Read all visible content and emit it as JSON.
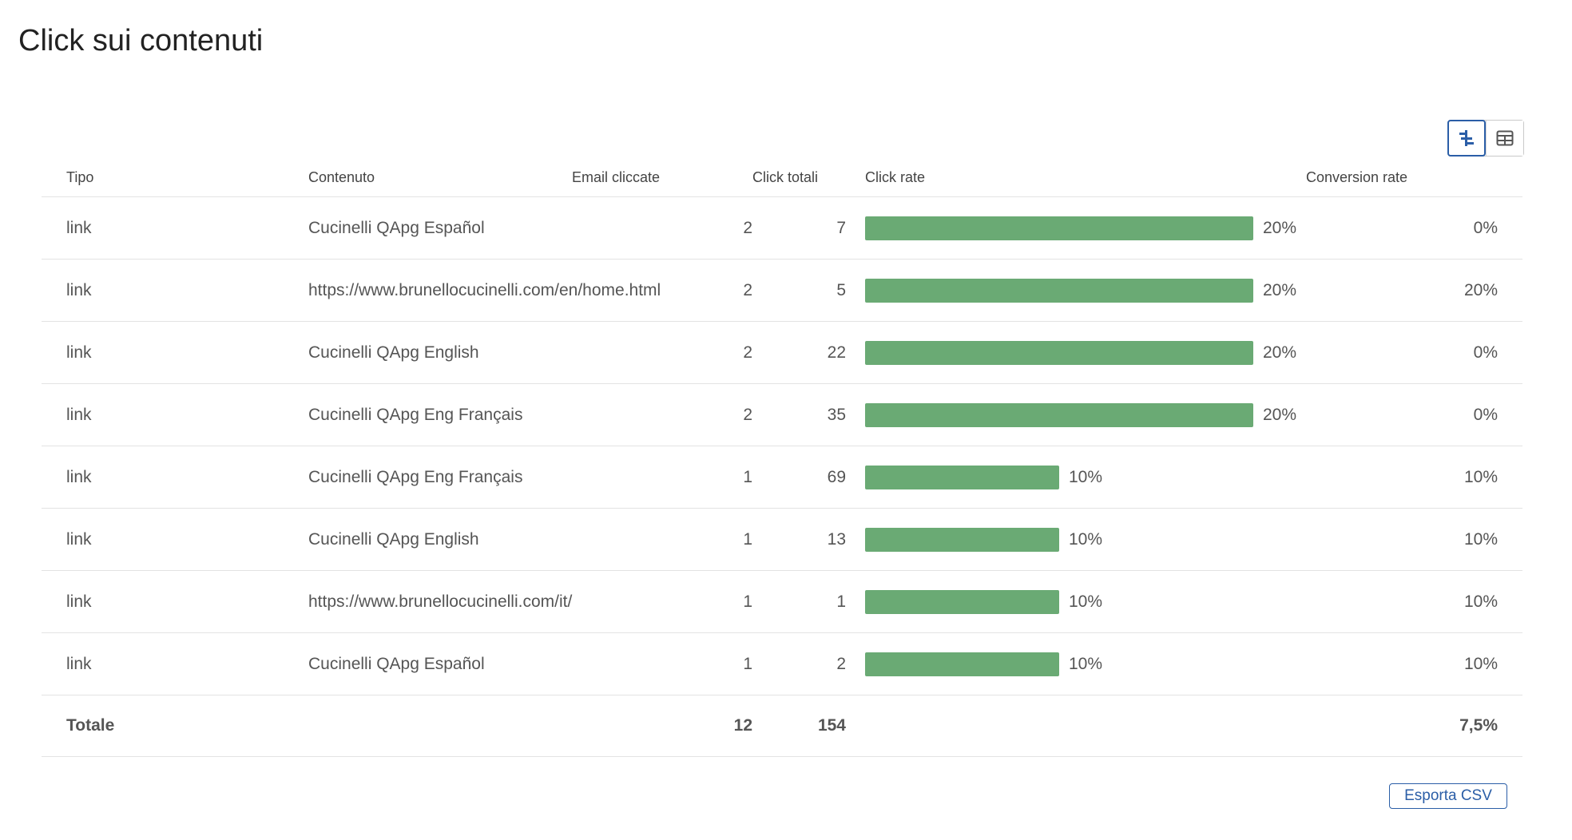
{
  "page": {
    "title": "Click sui contenuti"
  },
  "view_toggle": {
    "chart_icon": "bar-chart-view-icon",
    "table_icon": "table-view-icon",
    "active": "chart"
  },
  "table": {
    "headers": {
      "tipo": "Tipo",
      "contenuto": "Contenuto",
      "email": "Email cliccate",
      "click": "Click totali",
      "rate": "Click rate",
      "conversion": "Conversion rate"
    },
    "rows": [
      {
        "tipo": "link",
        "contenuto": "Cucinelli QApg Español",
        "email": "2",
        "click": "7",
        "rate": 0.2,
        "rate_label": "20%",
        "conversion": "0%"
      },
      {
        "tipo": "link",
        "contenuto": "https://www.brunellocucinelli.com/en/home.html",
        "email": "2",
        "click": "5",
        "rate": 0.2,
        "rate_label": "20%",
        "conversion": "20%"
      },
      {
        "tipo": "link",
        "contenuto": "Cucinelli QApg English",
        "email": "2",
        "click": "22",
        "rate": 0.2,
        "rate_label": "20%",
        "conversion": "0%"
      },
      {
        "tipo": "link",
        "contenuto": "Cucinelli QApg Eng Français",
        "email": "2",
        "click": "35",
        "rate": 0.2,
        "rate_label": "20%",
        "conversion": "0%"
      },
      {
        "tipo": "link",
        "contenuto": "Cucinelli QApg Eng Français",
        "email": "1",
        "click": "69",
        "rate": 0.1,
        "rate_label": "10%",
        "conversion": "10%"
      },
      {
        "tipo": "link",
        "contenuto": "Cucinelli QApg English",
        "email": "1",
        "click": "13",
        "rate": 0.1,
        "rate_label": "10%",
        "conversion": "10%"
      },
      {
        "tipo": "link",
        "contenuto": "https://www.brunellocucinelli.com/it/",
        "email": "1",
        "click": "1",
        "rate": 0.1,
        "rate_label": "10%",
        "conversion": "10%"
      },
      {
        "tipo": "link",
        "contenuto": "Cucinelli QApg Español",
        "email": "1",
        "click": "2",
        "rate": 0.1,
        "rate_label": "10%",
        "conversion": "10%"
      }
    ],
    "totals": {
      "label": "Totale",
      "email": "12",
      "click": "154",
      "conversion": "7,5%"
    },
    "bar_color": "#6aaa74",
    "link_color": "#2b5ea7"
  },
  "export": {
    "label": "Esporta CSV"
  }
}
